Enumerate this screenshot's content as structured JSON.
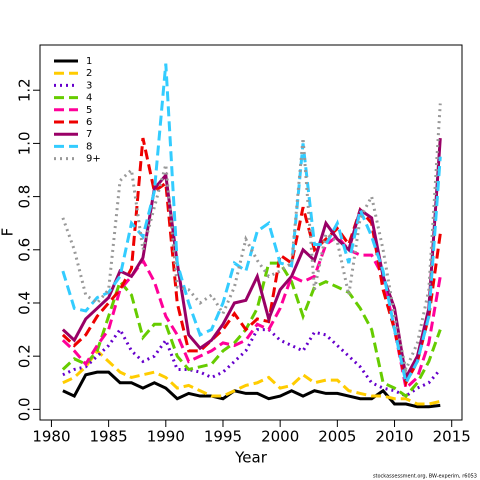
{
  "chart_data": {
    "type": "line",
    "x_label": "Year",
    "y_label": "F",
    "annotation": "stockassessment.org, BW-experim, r6053",
    "x": [
      1981,
      1982,
      1983,
      1984,
      1985,
      1986,
      1987,
      1988,
      1989,
      1990,
      1991,
      1992,
      1993,
      1994,
      1995,
      1996,
      1997,
      1998,
      1999,
      2000,
      2001,
      2002,
      2003,
      2004,
      2005,
      2006,
      2007,
      2008,
      2009,
      2010,
      2011,
      2012,
      2013,
      2014
    ],
    "xlim": [
      1979,
      2015.9
    ],
    "xticks": [
      1980,
      1985,
      1990,
      1995,
      2000,
      2005,
      2010,
      2015
    ],
    "ylim": [
      -0.04,
      1.37
    ],
    "yticks": [
      {
        "value": 0,
        "label": "0.0"
      },
      0.2,
      0.4,
      0.6,
      0.8,
      {
        "value": 1,
        "label": "1.0"
      },
      1.2
    ],
    "legend": "top-left",
    "series": [
      {
        "name": "1",
        "color": "#000000",
        "line_style": "solid",
        "values": [
          0.07,
          0.05,
          0.13,
          0.14,
          0.14,
          0.1,
          0.1,
          0.08,
          0.1,
          0.08,
          0.04,
          0.06,
          0.05,
          0.05,
          0.04,
          0.07,
          0.06,
          0.06,
          0.04,
          0.05,
          0.07,
          0.05,
          0.07,
          0.06,
          0.06,
          0.05,
          0.04,
          0.04,
          0.07,
          0.02,
          0.02,
          0.01,
          0.01,
          0.015
        ]
      },
      {
        "name": "2",
        "color": "#FFCC00",
        "line_style": "dashed",
        "values": [
          0.1,
          0.12,
          0.16,
          0.22,
          0.18,
          0.14,
          0.12,
          0.13,
          0.14,
          0.12,
          0.08,
          0.09,
          0.07,
          0.05,
          0.05,
          0.07,
          0.09,
          0.1,
          0.12,
          0.08,
          0.09,
          0.13,
          0.1,
          0.11,
          0.11,
          0.07,
          0.06,
          0.05,
          0.05,
          0.04,
          0.04,
          0.02,
          0.02,
          0.03
        ]
      },
      {
        "name": "3",
        "color": "#6600CC",
        "line_style": "dotted",
        "values": [
          0.13,
          0.15,
          0.16,
          0.2,
          0.24,
          0.3,
          0.22,
          0.18,
          0.2,
          0.26,
          0.15,
          0.15,
          0.14,
          0.12,
          0.14,
          0.18,
          0.22,
          0.3,
          0.3,
          0.26,
          0.24,
          0.22,
          0.29,
          0.28,
          0.24,
          0.2,
          0.16,
          0.1,
          0.08,
          0.07,
          0.05,
          0.08,
          0.1,
          0.15
        ]
      },
      {
        "name": "4",
        "color": "#66CC00",
        "line_style": "dashed",
        "values": [
          0.15,
          0.19,
          0.17,
          0.22,
          0.35,
          0.48,
          0.43,
          0.27,
          0.32,
          0.32,
          0.2,
          0.15,
          0.16,
          0.17,
          0.22,
          0.25,
          0.3,
          0.38,
          0.55,
          0.55,
          0.48,
          0.35,
          0.46,
          0.48,
          0.46,
          0.44,
          0.38,
          0.3,
          0.1,
          0.08,
          0.05,
          0.1,
          0.18,
          0.3
        ]
      },
      {
        "name": "5",
        "color": "#FF0099",
        "line_style": "dashed",
        "values": [
          0.26,
          0.22,
          0.17,
          0.24,
          0.3,
          0.45,
          0.5,
          0.56,
          0.48,
          0.35,
          0.28,
          0.18,
          0.2,
          0.22,
          0.25,
          0.24,
          0.26,
          0.32,
          0.3,
          0.38,
          0.5,
          0.48,
          0.5,
          0.62,
          0.65,
          0.6,
          0.58,
          0.58,
          0.5,
          0.3,
          0.08,
          0.12,
          0.25,
          0.5
        ]
      },
      {
        "name": "6",
        "color": "#EE0000",
        "line_style": "dashed",
        "values": [
          0.28,
          0.24,
          0.28,
          0.35,
          0.4,
          0.45,
          0.53,
          1.02,
          0.82,
          0.85,
          0.4,
          0.22,
          0.22,
          0.26,
          0.3,
          0.36,
          0.3,
          0.34,
          0.33,
          0.58,
          0.55,
          0.76,
          0.6,
          0.64,
          0.68,
          0.62,
          0.75,
          0.7,
          0.45,
          0.3,
          0.1,
          0.18,
          0.35,
          0.66
        ]
      },
      {
        "name": "7",
        "color": "#990066",
        "line_style": "solid",
        "values": [
          0.3,
          0.26,
          0.34,
          0.38,
          0.42,
          0.52,
          0.5,
          0.57,
          0.83,
          0.88,
          0.55,
          0.28,
          0.23,
          0.26,
          0.32,
          0.4,
          0.41,
          0.5,
          0.34,
          0.45,
          0.5,
          0.6,
          0.56,
          0.7,
          0.64,
          0.6,
          0.75,
          0.72,
          0.5,
          0.38,
          0.12,
          0.2,
          0.38,
          1.02
        ]
      },
      {
        "name": "8",
        "color": "#33CCFF",
        "line_style": "dashed",
        "values": [
          0.52,
          0.38,
          0.37,
          0.42,
          0.44,
          0.5,
          0.7,
          0.65,
          0.82,
          1.3,
          0.55,
          0.4,
          0.28,
          0.3,
          0.4,
          0.55,
          0.52,
          0.67,
          0.7,
          0.55,
          0.54,
          1.0,
          0.62,
          0.62,
          0.7,
          0.55,
          0.75,
          0.65,
          0.52,
          0.3,
          0.1,
          0.18,
          0.35,
          0.95
        ]
      },
      {
        "name": "9+",
        "color": "#999999",
        "line_style": "dotted",
        "values": [
          0.72,
          0.6,
          0.43,
          0.4,
          0.45,
          0.86,
          0.9,
          0.6,
          0.76,
          0.92,
          0.46,
          0.45,
          0.4,
          0.43,
          0.36,
          0.46,
          0.64,
          0.56,
          0.5,
          0.52,
          0.55,
          1.02,
          0.45,
          0.66,
          0.63,
          0.43,
          0.72,
          0.8,
          0.6,
          0.35,
          0.15,
          0.25,
          0.45,
          1.15
        ]
      }
    ]
  }
}
